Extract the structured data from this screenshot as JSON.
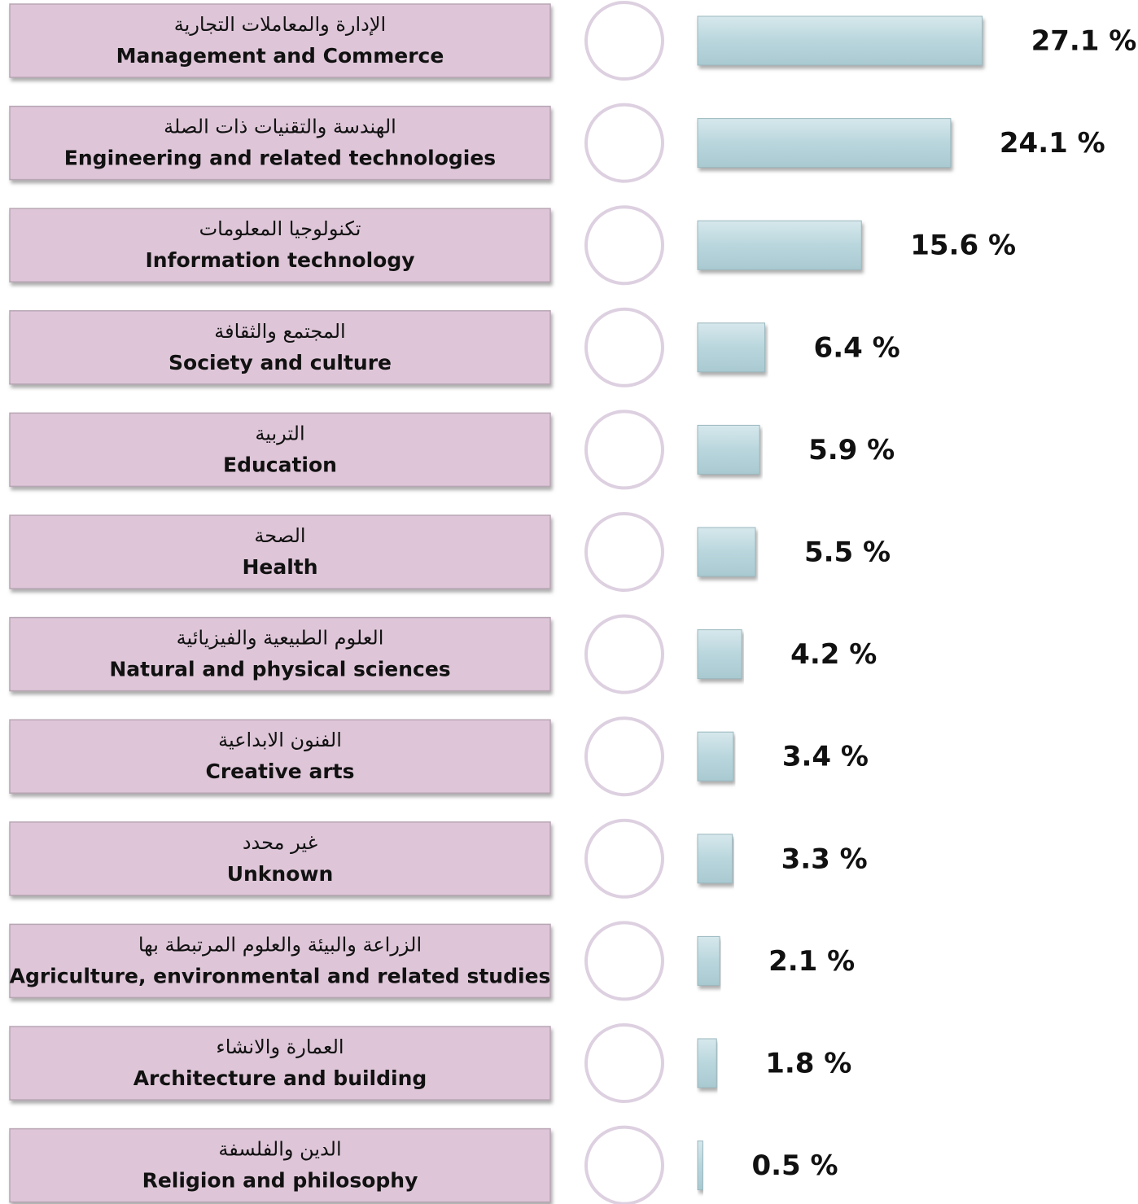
{
  "chart_data": {
    "type": "bar",
    "categories": [
      "Management and Commerce",
      "Engineering and related technologies",
      "Information technology",
      "Society and culture",
      "Education",
      "Health",
      "Natural and physical sciences",
      "Creative arts",
      "Unknown",
      "Agriculture, environmental and related studies",
      "Architecture and building",
      "Religion and philosophy"
    ],
    "categories_arabic": [
      "الإدارة والمعاملات التجارية",
      "الهندسة والتقنيات ذات الصلة",
      "تكنولوجيا المعلومات",
      "المجتمع والثقافة",
      "التربية",
      "الصحة",
      "العلوم الطبيعية والفيزيائية",
      "الفنون الابداعية",
      "غير محدد",
      "الزراعة والبيئة والعلوم المرتبطة بها",
      "العمارة والانشاء",
      "الدين والفلسفة"
    ],
    "values": [
      27.1,
      24.1,
      15.6,
      6.4,
      5.9,
      5.5,
      4.2,
      3.4,
      3.3,
      2.1,
      1.8,
      0.5
    ],
    "value_labels": [
      "27.1 %",
      "24.1 %",
      "15.6 %",
      "6.4 %",
      "5.9 %",
      "5.5 %",
      "4.2 %",
      "3.4 %",
      "3.3 %",
      "2.1 %",
      "1.8 %",
      "0.5 %"
    ],
    "color": "#b9d6dd"
  }
}
